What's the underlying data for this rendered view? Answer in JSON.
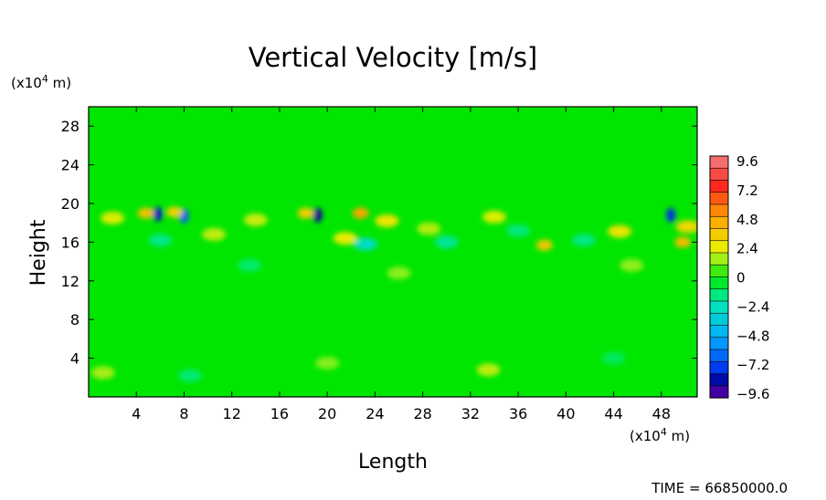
{
  "chart_data": {
    "type": "heatmap",
    "title": "Vertical Velocity [m/s]",
    "xlabel": "Length",
    "ylabel": "Height",
    "x_unit": "(x10",
    "x_unit_exp": "4",
    "x_unit_tail": " m)",
    "y_unit": "(x10",
    "y_unit_exp": "4",
    "y_unit_tail": " m)",
    "xlim": [
      0,
      51
    ],
    "ylim": [
      0,
      30
    ],
    "x_ticks": [
      "4",
      "8",
      "12",
      "16",
      "20",
      "24",
      "28",
      "32",
      "36",
      "40",
      "44",
      "48"
    ],
    "y_ticks": [
      "4",
      "8",
      "12",
      "16",
      "20",
      "24",
      "28"
    ],
    "colorbar": {
      "labels": [
        "9.6",
        "7.2",
        "4.8",
        "2.4",
        "0",
        "−2.4",
        "−4.8",
        "−7.2",
        "−9.6"
      ],
      "range": [
        -9.6,
        9.6
      ],
      "n_levels": 20
    },
    "background_value": 0,
    "features": [
      {
        "x": 5.8,
        "y": 18.9,
        "value": -7.8
      },
      {
        "x": 8.0,
        "y": 18.7,
        "value": -6.5
      },
      {
        "x": 19.2,
        "y": 18.8,
        "value": -8.6
      },
      {
        "x": 48.8,
        "y": 18.8,
        "value": -7.4
      },
      {
        "x": 4.8,
        "y": 19.0,
        "value": 3.8
      },
      {
        "x": 7.2,
        "y": 19.1,
        "value": 3.2
      },
      {
        "x": 18.2,
        "y": 19.0,
        "value": 3.4
      },
      {
        "x": 22.8,
        "y": 19.0,
        "value": 4.6
      },
      {
        "x": 25.0,
        "y": 18.2,
        "value": 2.6
      },
      {
        "x": 34.0,
        "y": 18.6,
        "value": 2.2
      },
      {
        "x": 38.2,
        "y": 15.7,
        "value": 3.6
      },
      {
        "x": 49.8,
        "y": 16.0,
        "value": 3.9
      },
      {
        "x": 50.2,
        "y": 17.6,
        "value": 3.0
      },
      {
        "x": 44.5,
        "y": 17.1,
        "value": 2.6
      },
      {
        "x": 21.5,
        "y": 16.4,
        "value": 2.4
      },
      {
        "x": 10.5,
        "y": 16.8,
        "value": 1.8
      },
      {
        "x": 2.0,
        "y": 18.5,
        "value": 2.2
      },
      {
        "x": 14.0,
        "y": 18.3,
        "value": 1.9
      },
      {
        "x": 28.5,
        "y": 17.4,
        "value": 1.6
      },
      {
        "x": 23.2,
        "y": 15.8,
        "value": -2.6
      },
      {
        "x": 6.0,
        "y": 16.2,
        "value": -1.6
      },
      {
        "x": 30.0,
        "y": 16.0,
        "value": -1.8
      },
      {
        "x": 41.5,
        "y": 16.2,
        "value": -1.5
      },
      {
        "x": 13.5,
        "y": 13.6,
        "value": -1.2
      },
      {
        "x": 45.5,
        "y": 13.6,
        "value": 1.2
      },
      {
        "x": 26.0,
        "y": 12.8,
        "value": 1.1
      },
      {
        "x": 33.5,
        "y": 2.8,
        "value": 1.8
      },
      {
        "x": 1.2,
        "y": 2.5,
        "value": 1.5
      },
      {
        "x": 8.5,
        "y": 2.2,
        "value": -1.3
      },
      {
        "x": 20.0,
        "y": 3.5,
        "value": 1.0
      },
      {
        "x": 44.0,
        "y": 4.0,
        "value": -1.0
      },
      {
        "x": 36.0,
        "y": 17.2,
        "value": -1.4
      }
    ]
  },
  "footer": {
    "time_label": "TIME = 66850000.0"
  }
}
